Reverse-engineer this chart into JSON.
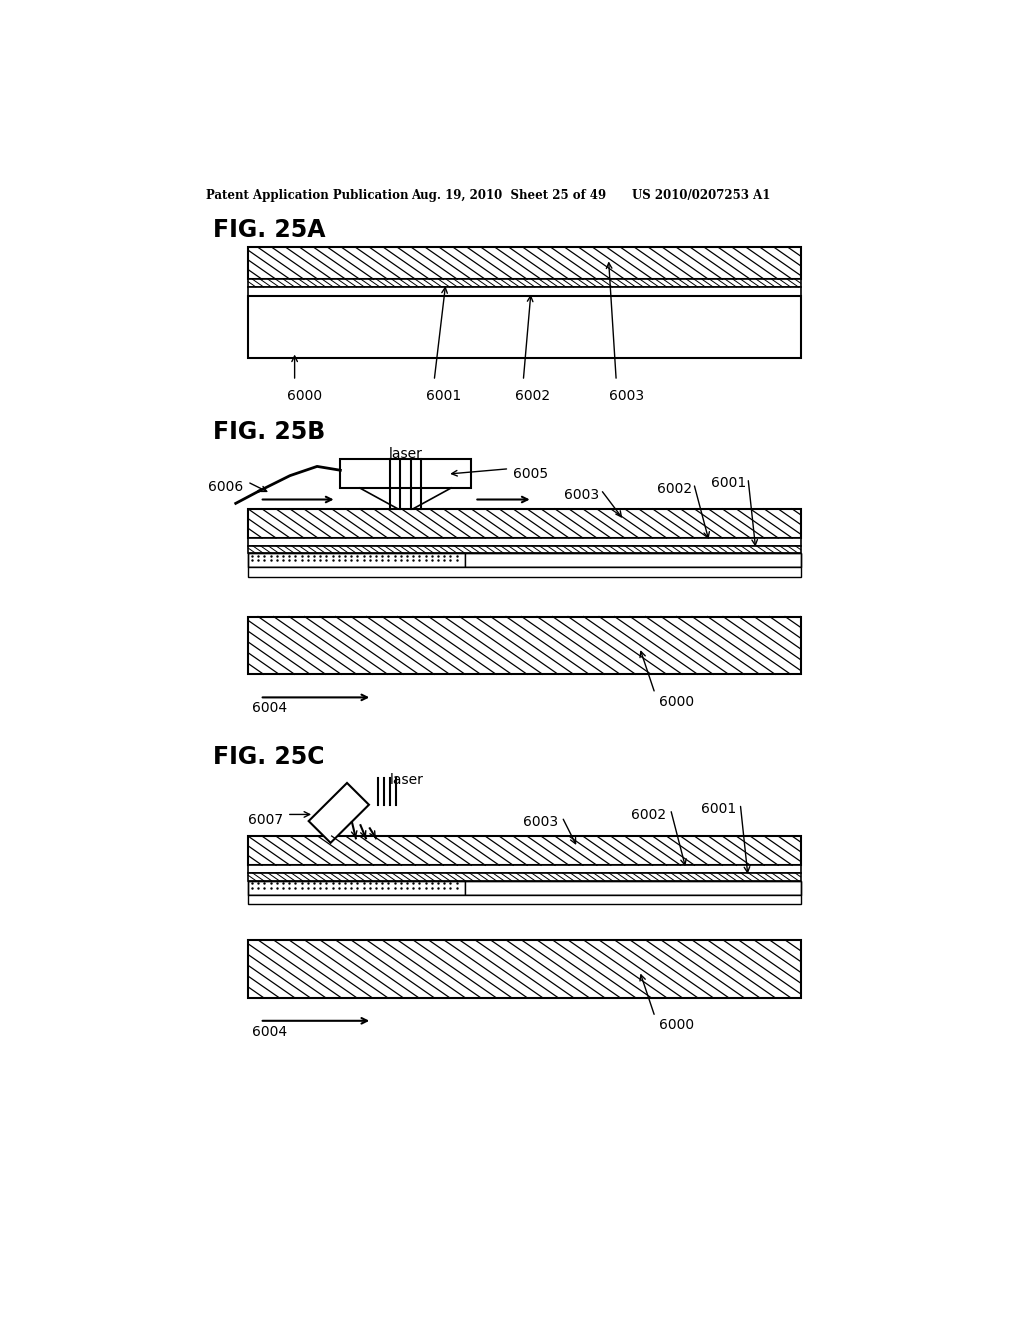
{
  "bg_color": "#ffffff",
  "line_color": "#000000",
  "header_left": "Patent Application Publication",
  "header_mid": "Aug. 19, 2010  Sheet 25 of 49",
  "header_right": "US 2010/0207253 A1",
  "fig_a": "FIG. 25A",
  "fig_b": "FIG. 25B",
  "fig_c": "FIG. 25C"
}
